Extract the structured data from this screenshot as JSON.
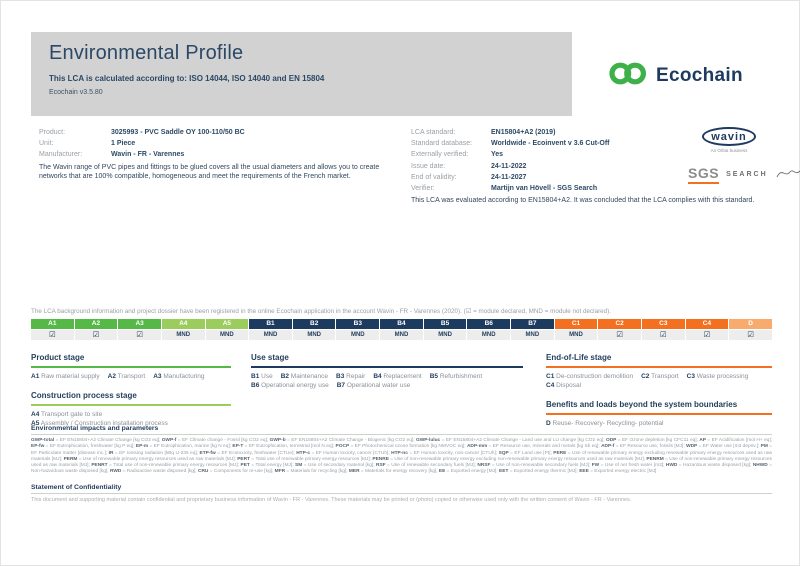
{
  "header": {
    "title": "Environmental Profile",
    "subtitle": "This LCA is calculated according to: ISO 14044, ISO 14040 and EN 15804",
    "version": "Ecochain v3.5.80"
  },
  "brand": {
    "name": "Ecochain",
    "logo_icon": "infinity-icon",
    "green": "#3db049",
    "navy": "#1e3a5f"
  },
  "product_info": {
    "rows": [
      {
        "label": "Product:",
        "value": "3025993 - PVC Saddle OY 100-110/50 BC"
      },
      {
        "label": "Unit:",
        "value": "1 Piece"
      },
      {
        "label": "Manufacturer:",
        "value": "Wavin - FR - Varennes"
      }
    ],
    "description": "The Wavin range of PVC pipes and fittings to be glued covers all the usual diameters and allows you to create networks that are 100% compatible, homogeneous and meet the requirements of the French market."
  },
  "lca_info": {
    "rows": [
      {
        "label": "LCA standard:",
        "value": "EN15804+A2 (2019)"
      },
      {
        "label": "Standard database:",
        "value": "Worldwide - Ecoinvent v 3.6 Cut-Off"
      },
      {
        "label": "Externally verified:",
        "value": "Yes"
      },
      {
        "label": "Issue date:",
        "value": "24-11-2022"
      },
      {
        "label": "End of validity:",
        "value": "24-11-2027"
      },
      {
        "label": "Verifier:",
        "value": "Martijn van Hövell - SGS Search"
      }
    ],
    "note": "This LCA was evaluated according to EN15804+A2. It was concluded that the LCA complies with this standard."
  },
  "wavin_logo": {
    "text": "wavin",
    "tagline": "An Orbia business"
  },
  "sgs_logo": {
    "sgs": "SGS",
    "search": "SEARCH",
    "accent": "#f37021"
  },
  "registered_note": "The LCA background information and project dossier have been registered in the online Ecochain application in the account Wavin - FR - Varennes (2020). (☑ = module declared, MND = module not declared).",
  "modules": {
    "columns": [
      {
        "id": "A1",
        "state": "☑",
        "color": "#56b947"
      },
      {
        "id": "A2",
        "state": "☑",
        "color": "#56b947"
      },
      {
        "id": "A3",
        "state": "☑",
        "color": "#56b947"
      },
      {
        "id": "A4",
        "state": "MND",
        "color": "#9ccc5e"
      },
      {
        "id": "A5",
        "state": "MND",
        "color": "#9ccc5e"
      },
      {
        "id": "B1",
        "state": "MND",
        "color": "#1d3a5f"
      },
      {
        "id": "B2",
        "state": "MND",
        "color": "#1d3a5f"
      },
      {
        "id": "B3",
        "state": "MND",
        "color": "#1d3a5f"
      },
      {
        "id": "B4",
        "state": "MND",
        "color": "#1d3a5f"
      },
      {
        "id": "B5",
        "state": "MND",
        "color": "#1d3a5f"
      },
      {
        "id": "B6",
        "state": "MND",
        "color": "#1d3a5f"
      },
      {
        "id": "B7",
        "state": "MND",
        "color": "#1d3a5f"
      },
      {
        "id": "C1",
        "state": "MND",
        "color": "#f37021"
      },
      {
        "id": "C2",
        "state": "☑",
        "color": "#f37021"
      },
      {
        "id": "C3",
        "state": "☑",
        "color": "#f37021"
      },
      {
        "id": "C4",
        "state": "☑",
        "color": "#f37021"
      },
      {
        "id": "D",
        "state": "☑",
        "color": "#f9ab6e"
      }
    ]
  },
  "stages": {
    "product": {
      "heading": "Product stage",
      "color": "#56b947",
      "lines": [
        [
          {
            "code": "A1",
            "label": "Raw material supply"
          },
          {
            "code": "A2",
            "label": "Transport"
          },
          {
            "code": "A3",
            "label": "Manufacturing"
          }
        ]
      ]
    },
    "construction": {
      "heading": "Construction process stage",
      "color": "#9ccc5e",
      "lines": [
        [
          {
            "code": "A4",
            "label": "Transport gate to site"
          }
        ],
        [
          {
            "code": "A5",
            "label": "Assembly / Construction installation process"
          }
        ]
      ]
    },
    "use": {
      "heading": "Use stage",
      "color": "#1d3a5f",
      "lines": [
        [
          {
            "code": "B1",
            "label": "Use"
          },
          {
            "code": "B2",
            "label": "Maintenance"
          },
          {
            "code": "B3",
            "label": "Repair"
          },
          {
            "code": "B4",
            "label": "Replacement"
          },
          {
            "code": "B5",
            "label": "Refurbishment"
          }
        ],
        [
          {
            "code": "B6",
            "label": "Operational energy use"
          },
          {
            "code": "B7",
            "label": "Operational water use"
          }
        ]
      ]
    },
    "end_of_life": {
      "heading": "End-of-Life stage",
      "color": "#f37021",
      "lines": [
        [
          {
            "code": "C1",
            "label": "De-construction demolition"
          },
          {
            "code": "C2",
            "label": "Transport"
          },
          {
            "code": "C3",
            "label": "Waste processing"
          }
        ],
        [
          {
            "code": "C4",
            "label": "Disposal"
          }
        ]
      ]
    },
    "benefits": {
      "heading": "Benefits and loads beyond the system boundaries",
      "color": "#f37021",
      "lines": [
        [
          {
            "code": "D",
            "label": "Reuse- Recovery- Recycling- potential"
          }
        ]
      ]
    }
  },
  "parameters": {
    "heading": "Environmental impacts and parameters",
    "definitions": [
      {
        "k": "GWP-total",
        "v": "EF EN15804+A2 Climate Change [kg CO2 eq]"
      },
      {
        "k": "GWP-f",
        "v": "EF Climate change - Fossil [kg CO2 eq]"
      },
      {
        "k": "GWP-b",
        "v": "EF EN15804+A2 Climate Change - Biogenic [kg CO2 eq]"
      },
      {
        "k": "GWP-luluc",
        "v": "EF EN15804+A2 Climate Change - Land use and LU change [kg CO2 eq]"
      },
      {
        "k": "ODP",
        "v": "EF Ozone depletion [kg CFC11 eq]"
      },
      {
        "k": "AP",
        "v": "EF Acidification [mol H+ eq]"
      },
      {
        "k": "EP-fw",
        "v": "EF Eutrophication, freshwater [kg P eq]"
      },
      {
        "k": "EP-m",
        "v": "EF Eutrophication, marine [kg N eq]"
      },
      {
        "k": "EP-T",
        "v": "EF Eutrophication, terrestrial [mol N eq]"
      },
      {
        "k": "POCP",
        "v": "EF Photochemical ozone formation [kg NMVOC eq]"
      },
      {
        "k": "ADP-mm",
        "v": "EF Resource use, minerals and metals [kg Sb eq]"
      },
      {
        "k": "ADP-f",
        "v": "EF Resource use, fossils [MJ]"
      },
      {
        "k": "WDP",
        "v": "EF Water use [m3 depriv.]"
      },
      {
        "k": "PM",
        "v": "EF Particulate matter [disease inc.]"
      },
      {
        "k": "IR",
        "v": "EF Ionising radiation [kBq U-235 eq]"
      },
      {
        "k": "ETP-fw",
        "v": "EF Ecotoxicity, freshwater [CTUe]"
      },
      {
        "k": "HTP-c",
        "v": "EF Human toxicity, cancer [CTUh]"
      },
      {
        "k": "HTP-nc",
        "v": "EF Human toxicity, non-cancer [CTUh]"
      },
      {
        "k": "SQP",
        "v": "EF Land use [Pt]"
      },
      {
        "k": "PERE",
        "v": "Use of renewable primary energy excluding renewable primary energy resources used as raw materials [MJ]"
      },
      {
        "k": "PERM",
        "v": "Use of renewable primary energy resources used as raw materials [MJ]"
      },
      {
        "k": "PERT",
        "v": "Total use of renewable primary energy resources [MJ]"
      },
      {
        "k": "PENRE",
        "v": "Use of non-renewable primary energy excluding non-renewable primary energy resources used as raw materials [MJ]"
      },
      {
        "k": "PENRM",
        "v": "Use of non-renewable primary energy resources used as raw materials [MJ]"
      },
      {
        "k": "PENRT",
        "v": "Total use of non-renewable primary energy resources [MJ]"
      },
      {
        "k": "PET",
        "v": "Total energy [MJ]"
      },
      {
        "k": "SM",
        "v": "Use of secondary material [kg]"
      },
      {
        "k": "RSF",
        "v": "Use of renewable secondary fuels [MJ]"
      },
      {
        "k": "NRSF",
        "v": "Use of non-renewable secondary fuels [MJ]"
      },
      {
        "k": "FW",
        "v": "Use of net fresh water [m3]"
      },
      {
        "k": "HWD",
        "v": "Hazardous waste disposed [kg]"
      },
      {
        "k": "NHWD",
        "v": "Non-hazardous waste disposed [kg]"
      },
      {
        "k": "RWD",
        "v": "Radioactive waste disposed [kg]"
      },
      {
        "k": "CRU",
        "v": "Components for re-use [kg]"
      },
      {
        "k": "MFR",
        "v": "Materials for recycling [kg]"
      },
      {
        "k": "MER",
        "v": "Materials for energy recovery [kg]"
      },
      {
        "k": "EE",
        "v": "Exported energy [MJ]"
      },
      {
        "k": "EET",
        "v": "Exported energy thermic [MJ]"
      },
      {
        "k": "EEE",
        "v": "Exported energy electric [MJ]"
      }
    ]
  },
  "confidentiality": {
    "heading": "Statement of Confidentiality",
    "text": "This document and supporting material contain confidential and proprietary business information of Wavin - FR - Varennes. These materials may be printed or (photo) copied or otherwise used only with the written consent of Wavin - FR - Varennes."
  }
}
